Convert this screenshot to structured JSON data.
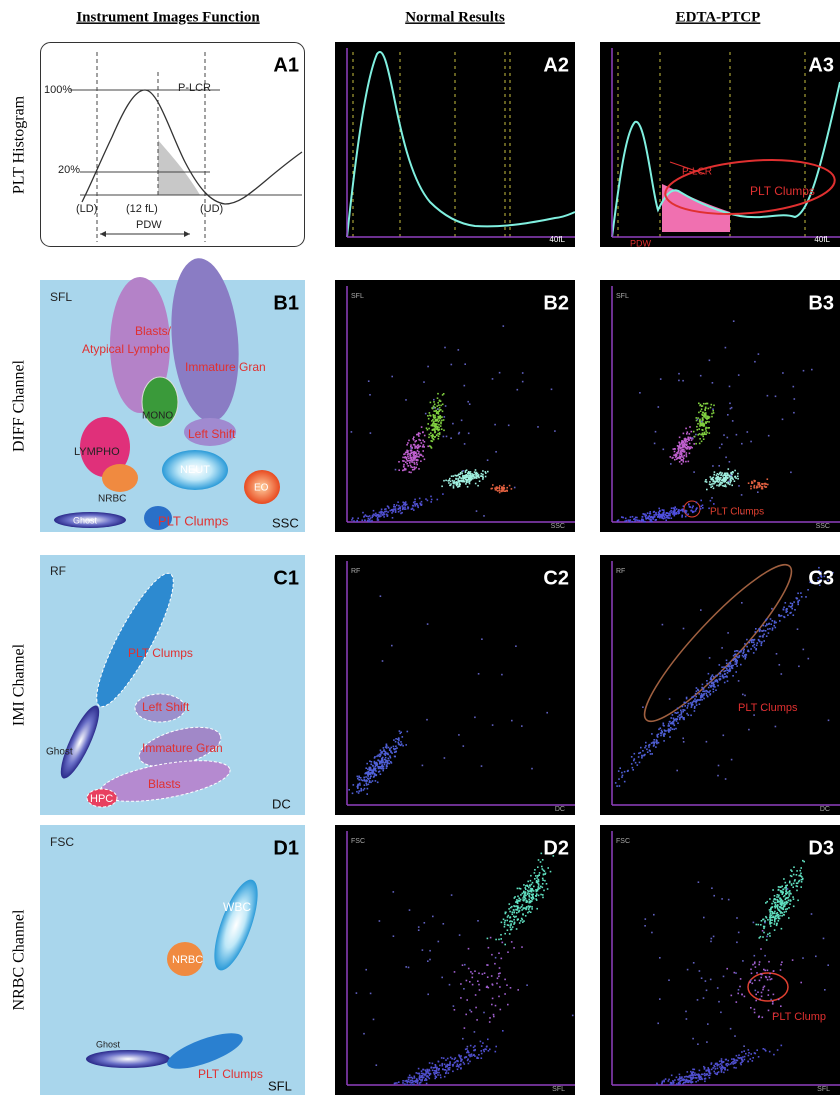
{
  "column_headers": [
    "Instrument Images Function",
    "Normal Results",
    "EDTA-PTCP"
  ],
  "row_labels": [
    "PLT Histogram",
    "DIFF Channel",
    "IMI Channel",
    "NRBC Channel"
  ],
  "panels": [
    {
      "label": "A1",
      "texts": [
        "100%",
        "20%",
        "P-LCR",
        "(LD)",
        "(12 fL)",
        "(UD)",
        "PDW"
      ]
    },
    {
      "label": "A2",
      "texts": [
        "40fL"
      ]
    },
    {
      "label": "A3",
      "texts": [
        "P-LCR",
        "PLT Clumps",
        "PDW",
        "40fL"
      ]
    },
    {
      "label": "B1",
      "texts": [
        "SFL",
        "Blasts/",
        "Atypical Lympho",
        "Immature Gran",
        "MONO",
        "Left Shift",
        "LYMPHO",
        "NEUT",
        "NRBC",
        "EO",
        "Ghost",
        "PLT Clumps",
        "SSC"
      ]
    },
    {
      "label": "B2",
      "texts": [
        "SFL",
        "SSC"
      ]
    },
    {
      "label": "B3",
      "texts": [
        "SFL",
        "PLT Clumps",
        "SSC"
      ]
    },
    {
      "label": "C1",
      "texts": [
        "RF",
        "PLT Clumps",
        "Left Shift",
        "Ghost",
        "Immature Gran",
        "Blasts",
        "HPC",
        "DC"
      ]
    },
    {
      "label": "C2",
      "texts": [
        "RF",
        "DC"
      ]
    },
    {
      "label": "C3",
      "texts": [
        "RF",
        "PLT Clumps",
        "DC"
      ]
    },
    {
      "label": "D1",
      "texts": [
        "FSC",
        "WBC",
        "NRBC",
        "Ghost",
        "PLT Clumps",
        "SFL"
      ]
    },
    {
      "label": "D2",
      "texts": [
        "FSC",
        "SFL"
      ]
    },
    {
      "label": "D3",
      "texts": [
        "FSC",
        "PLT Clump",
        "SFL"
      ]
    }
  ]
}
